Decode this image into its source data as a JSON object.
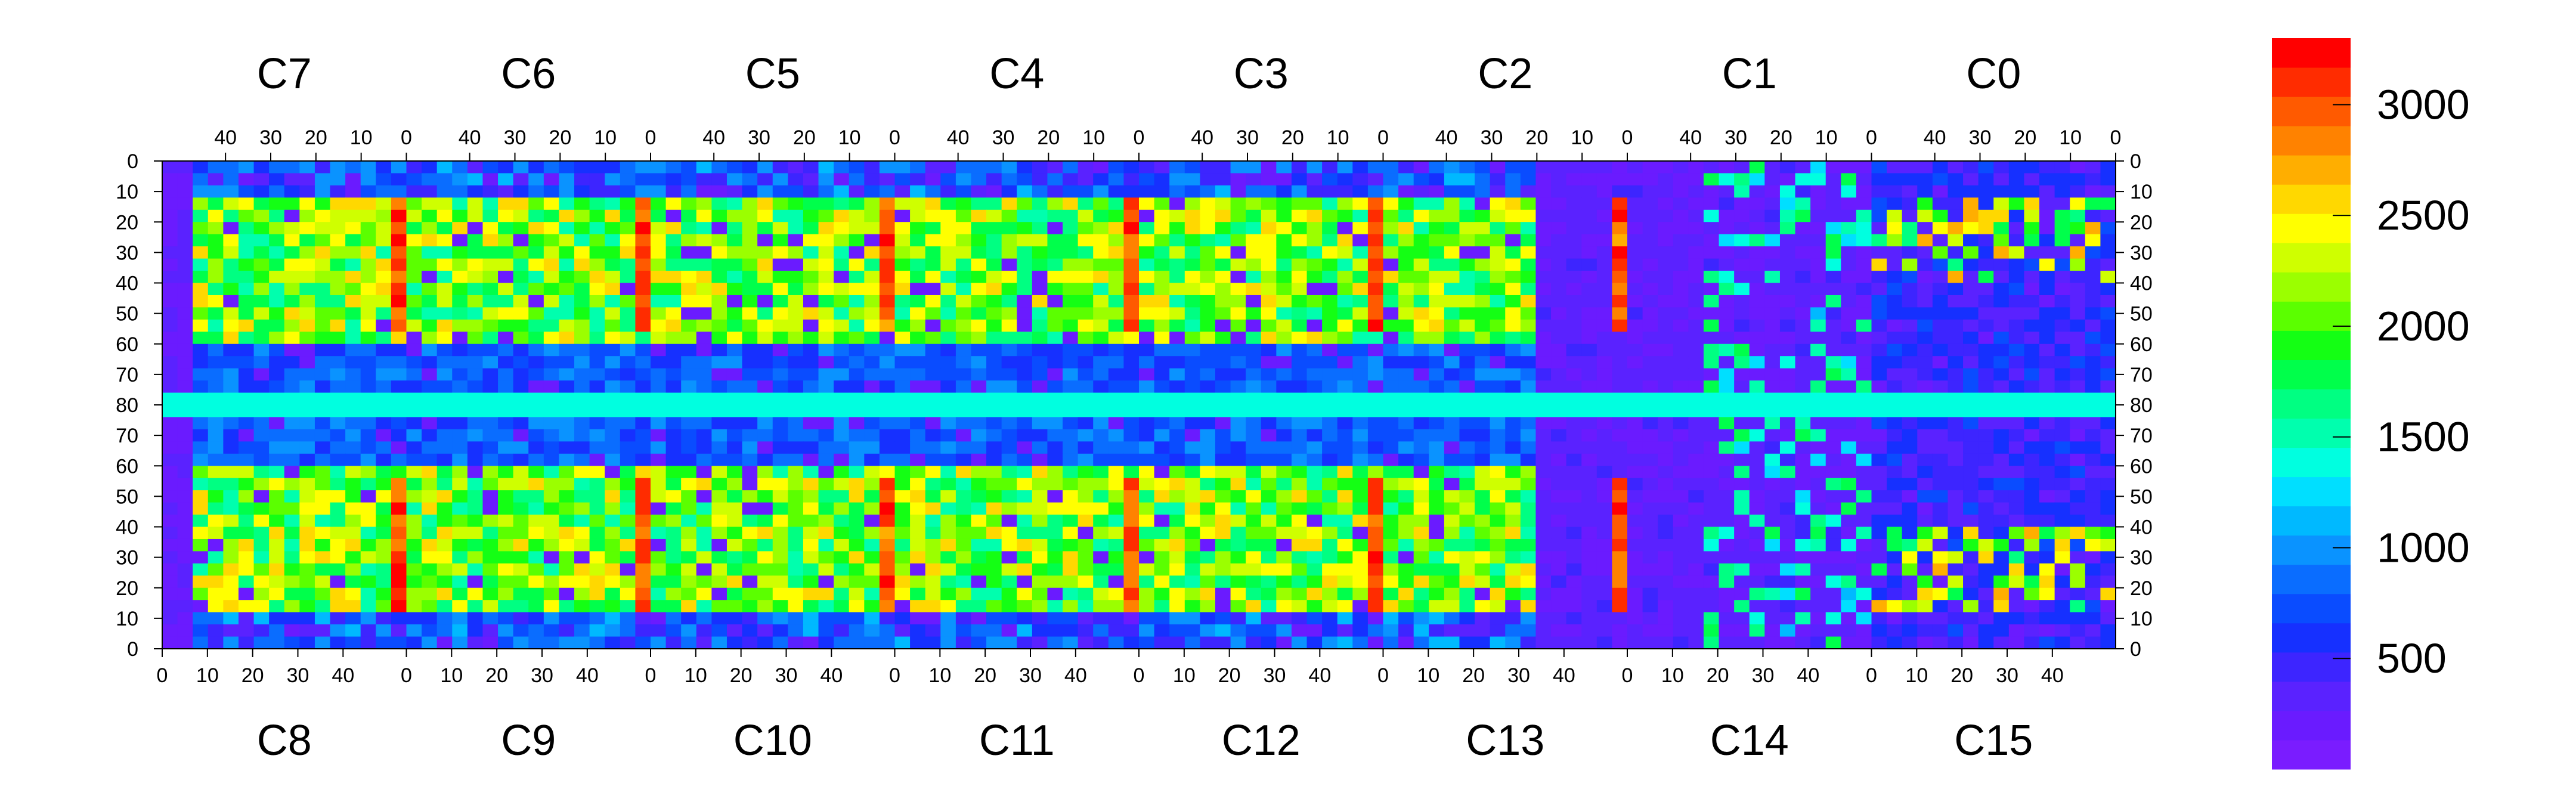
{
  "chart_data": {
    "type": "heatmap",
    "title": "",
    "top_chip_labels": [
      "C7",
      "C6",
      "C5",
      "C4",
      "C3",
      "C2",
      "C1",
      "C0"
    ],
    "bottom_chip_labels": [
      "C8",
      "C9",
      "C10",
      "C11",
      "C12",
      "C13",
      "C14",
      "C15"
    ],
    "top_x_ticks": [
      "40",
      "30",
      "20",
      "10",
      "0"
    ],
    "bottom_x_ticks": [
      "0",
      "10",
      "20",
      "30",
      "40"
    ],
    "y_ticks": [
      "0",
      "10",
      "20",
      "30",
      "40",
      "50",
      "60",
      "70",
      "80",
      "70",
      "60",
      "50",
      "40",
      "30",
      "20",
      "10",
      "0"
    ],
    "colorbar": {
      "min": 0,
      "max": 3300,
      "tick_values": [
        500,
        1000,
        1500,
        2000,
        2500,
        3000
      ],
      "tick_labels": [
        "500",
        "1000",
        "1500",
        "2000",
        "2500",
        "3000"
      ],
      "colors": [
        "#7a1cff",
        "#6a1bff",
        "#5a22ff",
        "#3d25ff",
        "#1630ff",
        "#0a4cff",
        "#0a6dff",
        "#0a93ff",
        "#00b9ff",
        "#00dfff",
        "#00ffe0",
        "#00ffae",
        "#00ff82",
        "#00ff4b",
        "#14ff14",
        "#5bff00",
        "#9bff00",
        "#cfff00",
        "#ffff00",
        "#ffd800",
        "#ffae00",
        "#ff8200",
        "#ff5a00",
        "#ff2c00",
        "#ff0000"
      ]
    },
    "grid": false
  }
}
